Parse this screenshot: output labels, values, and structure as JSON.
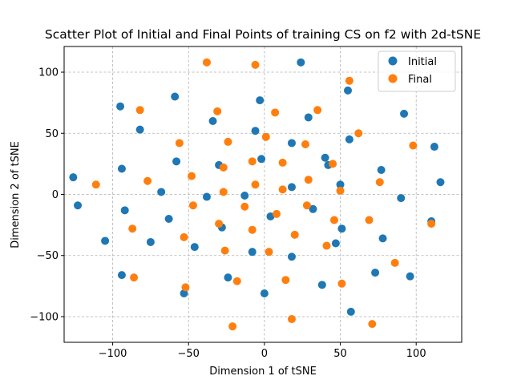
{
  "chart_data": {
    "type": "scatter",
    "title": "Scatter Plot of Initial and Final Points of training CS on f2 with 2d-tSNE",
    "xlabel": "Dimension 1 of tSNE",
    "ylabel": "Dimension 2 of tSNE",
    "xlim": [
      -132,
      130
    ],
    "ylim": [
      -121,
      121
    ],
    "xticks": [
      -100,
      -50,
      0,
      50,
      100
    ],
    "yticks": [
      -100,
      -50,
      0,
      50,
      100
    ],
    "xtick_labels": [
      "−100",
      "−50",
      "0",
      "50",
      "100"
    ],
    "ytick_labels": [
      "−100",
      "−50",
      "0",
      "50",
      "100"
    ],
    "grid": true,
    "legend_position": "top-right",
    "series": [
      {
        "name": "Initial",
        "color": "#1f77b4",
        "points": [
          [
            -126,
            14
          ],
          [
            -123,
            -9
          ],
          [
            -105,
            -38
          ],
          [
            -95,
            72
          ],
          [
            -94,
            21
          ],
          [
            -94,
            -66
          ],
          [
            -92,
            -13
          ],
          [
            -82,
            53
          ],
          [
            -75,
            -39
          ],
          [
            -68,
            2
          ],
          [
            -63,
            -20
          ],
          [
            -59,
            80
          ],
          [
            -58,
            27
          ],
          [
            -53,
            -81
          ],
          [
            -46,
            -43
          ],
          [
            -38,
            -2
          ],
          [
            -34,
            60
          ],
          [
            -30,
            24
          ],
          [
            -28,
            -27
          ],
          [
            -24,
            -68
          ],
          [
            -13,
            -1
          ],
          [
            -8,
            -47
          ],
          [
            -6,
            52
          ],
          [
            -3,
            77
          ],
          [
            -2,
            29
          ],
          [
            0,
            -81
          ],
          [
            4,
            -18
          ],
          [
            18,
            42
          ],
          [
            18,
            6
          ],
          [
            18,
            -51
          ],
          [
            24,
            108
          ],
          [
            29,
            63
          ],
          [
            32,
            -12
          ],
          [
            38,
            -74
          ],
          [
            40,
            30
          ],
          [
            42,
            24
          ],
          [
            47,
            -40
          ],
          [
            50,
            8
          ],
          [
            51,
            -28
          ],
          [
            55,
            85
          ],
          [
            56,
            45
          ],
          [
            57,
            -96
          ],
          [
            73,
            -64
          ],
          [
            77,
            20
          ],
          [
            78,
            -36
          ],
          [
            90,
            -3
          ],
          [
            92,
            66
          ],
          [
            96,
            -67
          ],
          [
            110,
            -22
          ],
          [
            112,
            39
          ],
          [
            116,
            10
          ]
        ]
      },
      {
        "name": "Final",
        "color": "#ff7f0e",
        "points": [
          [
            -111,
            8
          ],
          [
            -87,
            -28
          ],
          [
            -86,
            -68
          ],
          [
            -82,
            69
          ],
          [
            -77,
            11
          ],
          [
            -56,
            42
          ],
          [
            -53,
            -35
          ],
          [
            -52,
            -76
          ],
          [
            -48,
            15
          ],
          [
            -47,
            -9
          ],
          [
            -38,
            108
          ],
          [
            -31,
            68
          ],
          [
            -30,
            -24
          ],
          [
            -27,
            22
          ],
          [
            -27,
            2
          ],
          [
            -26,
            -46
          ],
          [
            -24,
            43
          ],
          [
            -21,
            -108
          ],
          [
            -18,
            -71
          ],
          [
            -13,
            -10
          ],
          [
            -8,
            27
          ],
          [
            -8,
            -29
          ],
          [
            -6,
            8
          ],
          [
            -6,
            106
          ],
          [
            1,
            47
          ],
          [
            3,
            -47
          ],
          [
            7,
            67
          ],
          [
            8,
            -16
          ],
          [
            12,
            26
          ],
          [
            12,
            4
          ],
          [
            14,
            -70
          ],
          [
            18,
            -102
          ],
          [
            20,
            -33
          ],
          [
            27,
            41
          ],
          [
            28,
            -9
          ],
          [
            29,
            12
          ],
          [
            35,
            69
          ],
          [
            41,
            -42
          ],
          [
            45,
            25
          ],
          [
            46,
            -21
          ],
          [
            50,
            3
          ],
          [
            51,
            -73
          ],
          [
            56,
            93
          ],
          [
            62,
            50
          ],
          [
            69,
            -21
          ],
          [
            71,
            -106
          ],
          [
            76,
            10
          ],
          [
            86,
            -56
          ],
          [
            98,
            40
          ],
          [
            110,
            -24
          ]
        ]
      }
    ]
  }
}
